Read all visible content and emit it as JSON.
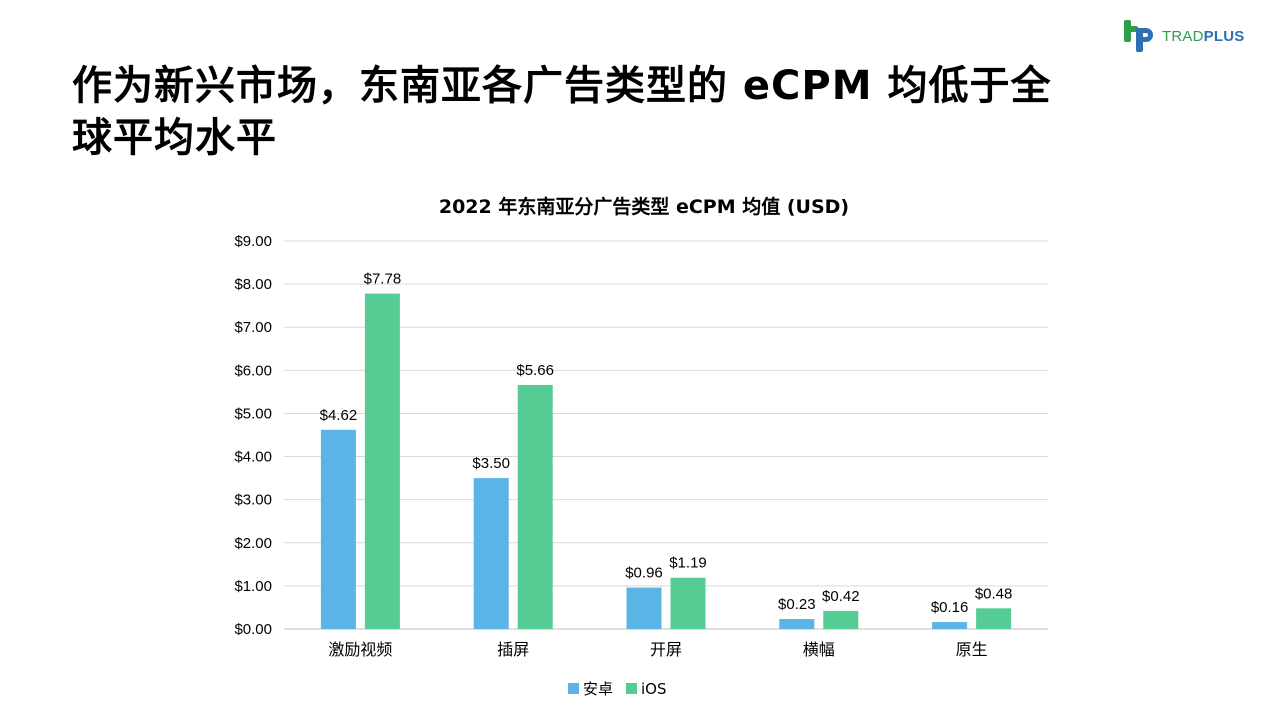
{
  "slide": {
    "title": "作为新兴市场，东南亚各广告类型的 eCPM 均低于全球平均水平"
  },
  "logo": {
    "text_part1": "TRAD",
    "text_part2": "PLUS",
    "colors": {
      "green": "#2e9e49",
      "blue": "#2e6fb3"
    }
  },
  "chart_data": {
    "type": "bar",
    "title": "2022 年东南亚分广告类型 eCPM 均值 (USD)",
    "xlabel": "",
    "ylabel": "",
    "categories": [
      "激励视频",
      "插屏",
      "开屏",
      "横幅",
      "原生"
    ],
    "series": [
      {
        "name": "安卓",
        "color": "#5ab4e6",
        "values": [
          4.62,
          3.5,
          0.96,
          0.23,
          0.16
        ],
        "labels": [
          "$4.62",
          "$3.50",
          "$0.96",
          "$0.23",
          "$0.16"
        ]
      },
      {
        "name": "iOS",
        "color": "#55cc94",
        "values": [
          7.78,
          5.66,
          1.19,
          0.42,
          0.48
        ],
        "labels": [
          "$7.78",
          "$5.66",
          "$1.19",
          "$0.42",
          "$0.48"
        ]
      }
    ],
    "ylim": [
      0,
      9
    ],
    "yticks": [
      0,
      1,
      2,
      3,
      4,
      5,
      6,
      7,
      8,
      9
    ],
    "ytick_labels": [
      "$0.00",
      "$1.00",
      "$2.00",
      "$3.00",
      "$4.00",
      "$5.00",
      "$6.00",
      "$7.00",
      "$8.00",
      "$9.00"
    ],
    "grid": true,
    "legend_position": "bottom-center"
  }
}
